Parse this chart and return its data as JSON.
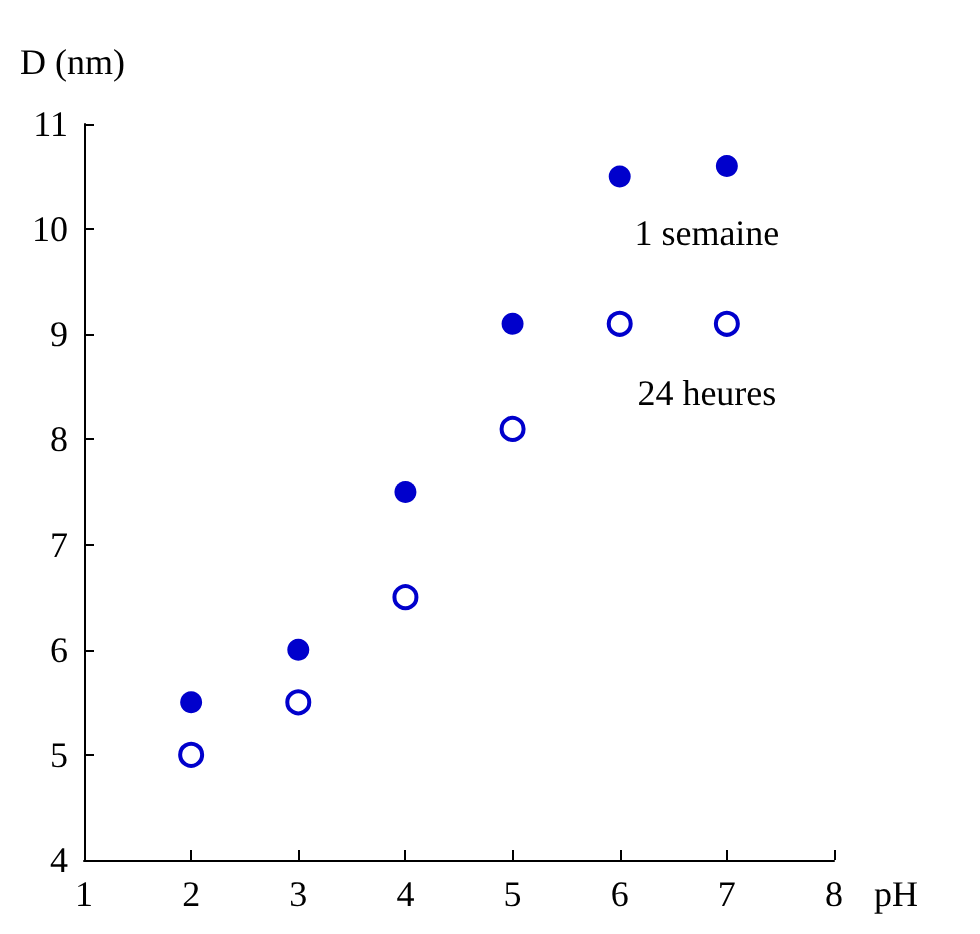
{
  "chart_data": {
    "type": "scatter",
    "xlabel": "pH",
    "ylabel": "D (nm)",
    "x": [
      2,
      3,
      4,
      5,
      6,
      7
    ],
    "series": [
      {
        "name": "1 semaine",
        "color": "#0000cc",
        "values": [
          5.5,
          6.0,
          7.5,
          9.1,
          10.5,
          10.6
        ]
      },
      {
        "name": "24 heures",
        "color": "#0000cc",
        "values": [
          5.0,
          5.5,
          6.5,
          8.1,
          9.1,
          9.1
        ]
      }
    ],
    "xlim": [
      1,
      8
    ],
    "xticks": [
      1,
      2,
      3,
      4,
      5,
      6,
      7,
      8
    ],
    "ylim": [
      4,
      11
    ],
    "yticks": [
      4,
      5,
      6,
      7,
      8,
      9,
      10,
      11
    ],
    "grid": false,
    "marker": "circle"
  }
}
